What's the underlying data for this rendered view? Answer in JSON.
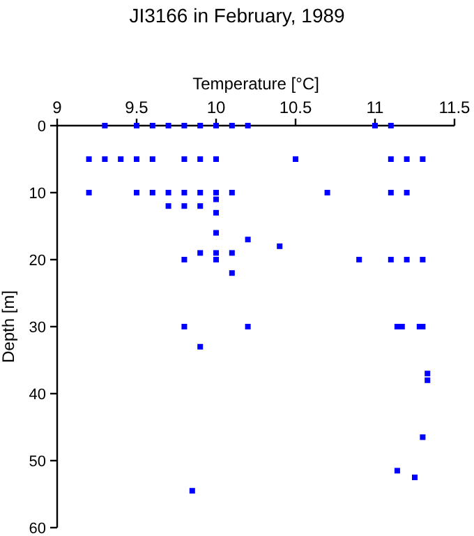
{
  "chart_data": {
    "type": "scatter",
    "title": "JI3166 in February, 1989",
    "xlabel": "Temperature [°C]",
    "ylabel": "Depth [m]",
    "xlim": [
      9,
      11.5
    ],
    "xticks": [
      9,
      9.5,
      10,
      10.5,
      11,
      11.5
    ],
    "ylim": [
      60,
      0
    ],
    "yticks": [
      0,
      10,
      20,
      30,
      40,
      50,
      60
    ],
    "marker": "square",
    "series": [
      {
        "color": "#0000ff",
        "x": [
          9.3,
          9.5,
          9.6,
          9.7,
          9.8,
          9.9,
          10.0,
          10.1,
          10.2,
          11.0,
          11.1,
          9.2,
          9.3,
          9.4,
          9.5,
          9.6,
          9.8,
          9.9,
          10.0,
          10.5,
          11.1,
          11.2,
          11.3,
          9.2,
          9.5,
          9.6,
          9.7,
          9.8,
          9.9,
          10.0,
          10.1,
          10.7,
          11.1,
          11.2,
          10.0,
          9.7,
          9.8,
          9.9,
          10.0,
          10.0,
          10.2,
          10.4,
          9.9,
          10.0,
          10.1,
          9.8,
          10.0,
          10.9,
          11.1,
          11.2,
          11.3,
          10.1,
          9.8,
          10.2,
          11.14,
          11.17,
          11.28,
          11.3,
          9.9,
          11.33,
          11.33,
          11.3,
          11.14,
          11.25,
          9.85
        ],
        "values": [
          0,
          0,
          0,
          0,
          0,
          0,
          0,
          0,
          0,
          0,
          0,
          5,
          5,
          5,
          5,
          5,
          5,
          5,
          5,
          5,
          5,
          5,
          5,
          10,
          10,
          10,
          10,
          10,
          10,
          10,
          10,
          10,
          10,
          10,
          11,
          12,
          12,
          12,
          13,
          16,
          17,
          18,
          19,
          19,
          19,
          20,
          20,
          20,
          20,
          20,
          20,
          22,
          30,
          30,
          30,
          30,
          30,
          30,
          33,
          37,
          38,
          46.5,
          51.5,
          52.5,
          54.5
        ]
      }
    ]
  }
}
